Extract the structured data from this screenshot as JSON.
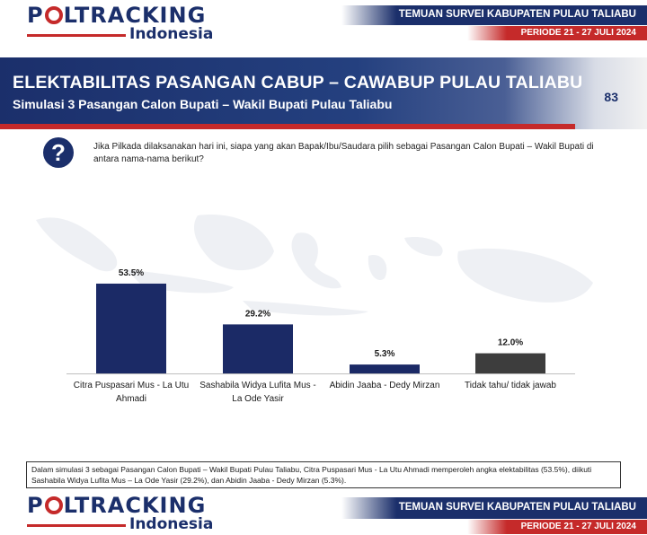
{
  "header": {
    "logo_main": [
      "P",
      "LTRACKING"
    ],
    "logo_sub": "Indonesia",
    "banner": "TEMUAN SURVEI KABUPATEN PULAU TALIABU",
    "period": "PERIODE 21 - 27 JULI 2024"
  },
  "title": {
    "main": "ELEKTABILITAS PASANGAN  CABUP – CAWABUP PULAU TALIABU",
    "subtitle": "Simulasi 3 Pasangan Calon Bupati – Wakil Bupati  Pulau Taliabu",
    "page_number": "83"
  },
  "question": {
    "icon": "question-mark-icon",
    "text": "Jika Pilkada dilaksanakan hari ini, siapa yang akan Bapak/Ibu/Saudara pilih sebagai Pasangan Calon Bupati – Wakil Bupati di antara nama-nama berikut?"
  },
  "chart_data": {
    "type": "bar",
    "categories": [
      [
        "Citra Puspasari Mus - La Utu",
        "Ahmadi"
      ],
      [
        "Sashabila Widya Lufita Mus -",
        "La Ode Yasir"
      ],
      [
        "Abidin Jaaba - Dedy Mirzan"
      ],
      [
        "Tidak tahu/ tidak jawab"
      ]
    ],
    "values": [
      53.5,
      29.2,
      5.3,
      12.0
    ],
    "labels": [
      "53.5%",
      "29.2%",
      "5.3%",
      "12.0%"
    ],
    "colors": [
      "#1b2a66",
      "#1b2a66",
      "#1b2a66",
      "#3d3d3d"
    ],
    "ylim": [
      0,
      60
    ],
    "legend": "none",
    "grid": false
  },
  "footnote": "Dalam simulasi 3 sebagai Pasangan Calon Bupati – Wakil Bupati Pulau Taliabu, Citra Puspasari Mus - La Utu Ahmadi memperoleh angka elektabilitas (53.5%), diikuti Sashabila Widya Lufita Mus – La Ode Yasir  (29.2%), dan Abidin Jaaba - Dedy Mirzan (5.3%).",
  "footer": {
    "logo_main": [
      "P",
      "LTRACKING"
    ],
    "logo_sub": "Indonesia",
    "banner": "TEMUAN SURVEI KABUPATEN PULAU TALIABU",
    "period": "PERIODE 21 - 27 JULI 2024"
  },
  "colors": {
    "navy": "#1b2f6b",
    "red": "#c52a2a"
  }
}
